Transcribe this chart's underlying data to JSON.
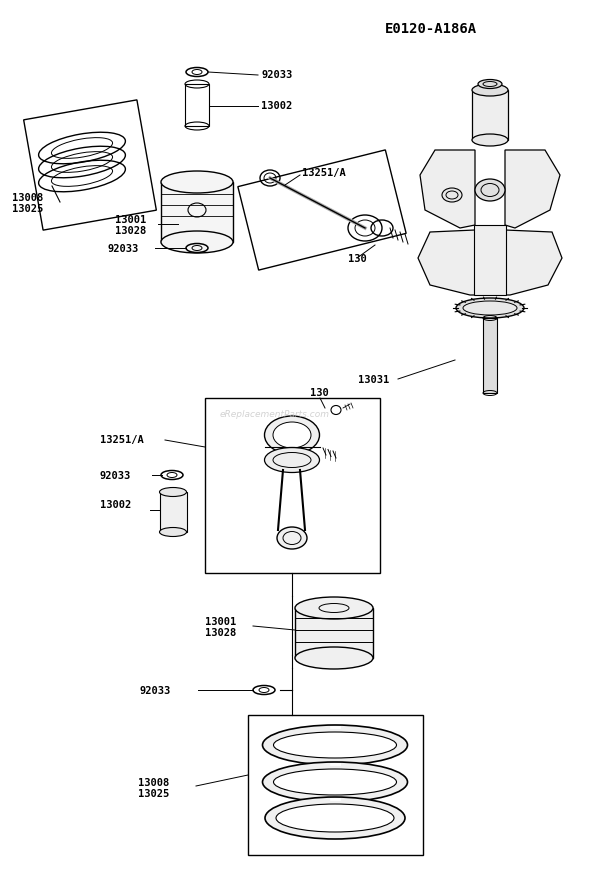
{
  "title": "E0120-A186A",
  "bg_color": "#ffffff",
  "watermark": "eReplacementParts.com",
  "label_fontsize": 7.5,
  "title_fontsize": 10
}
